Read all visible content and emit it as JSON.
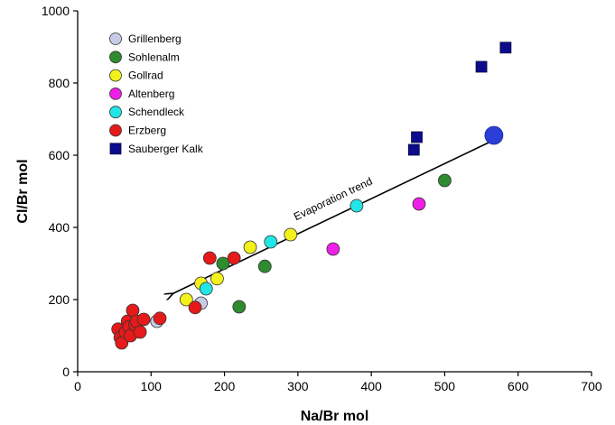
{
  "chart_data": {
    "type": "scatter",
    "xlabel": "Na/Br mol",
    "ylabel": "Cl/Br mol",
    "xlim": [
      0,
      700
    ],
    "ylim": [
      0,
      1000
    ],
    "x_ticks": [
      "0",
      "100",
      "200",
      "300",
      "400",
      "500",
      "600",
      "700"
    ],
    "y_ticks": [
      "0",
      "200",
      "400",
      "600",
      "800",
      "1000"
    ],
    "grid": false,
    "legend_position": "top-left",
    "series": [
      {
        "name": "Grillenberg",
        "color": "#c8cbe8",
        "marker": "circle",
        "points": [
          [
            108,
            140
          ],
          [
            168,
            190
          ]
        ]
      },
      {
        "name": "Sohlenalm",
        "color": "#2e8b2e",
        "marker": "circle",
        "points": [
          [
            198,
            300
          ],
          [
            220,
            180
          ],
          [
            255,
            292
          ],
          [
            500,
            530
          ]
        ]
      },
      {
        "name": "Gollrad",
        "color": "#f2f21a",
        "marker": "circle",
        "points": [
          [
            148,
            200
          ],
          [
            168,
            245
          ],
          [
            190,
            258
          ],
          [
            235,
            345
          ],
          [
            290,
            380
          ]
        ]
      },
      {
        "name": "Altenberg",
        "color": "#ee1fe6",
        "marker": "circle",
        "points": [
          [
            348,
            340
          ],
          [
            465,
            465
          ]
        ]
      },
      {
        "name": "Schendleck",
        "color": "#22e6e6",
        "marker": "circle",
        "points": [
          [
            175,
            230
          ],
          [
            263,
            360
          ],
          [
            380,
            460
          ]
        ]
      },
      {
        "name": "Erzberg",
        "color": "#e61a1a",
        "marker": "circle",
        "points": [
          [
            55,
            118
          ],
          [
            58,
            95
          ],
          [
            60,
            80
          ],
          [
            65,
            110
          ],
          [
            68,
            140
          ],
          [
            70,
            125
          ],
          [
            72,
            100
          ],
          [
            75,
            170
          ],
          [
            78,
            130
          ],
          [
            80,
            140
          ],
          [
            85,
            110
          ],
          [
            90,
            145
          ],
          [
            112,
            148
          ],
          [
            160,
            178
          ],
          [
            180,
            315
          ],
          [
            213,
            315
          ]
        ]
      },
      {
        "name": "Sauberger Kalk",
        "color": "#0c0c8c",
        "marker": "square",
        "points": [
          [
            458,
            615
          ],
          [
            462,
            650
          ],
          [
            550,
            845
          ],
          [
            583,
            898
          ]
        ]
      }
    ],
    "highlight_point": {
      "x": 567,
      "y": 655,
      "color": "#2b3fd6"
    },
    "annotation": {
      "text": "Evaporation trend",
      "arrow_from": [
        565,
        640
      ],
      "arrow_to": [
        128,
        215
      ],
      "label_at": [
        350,
        470
      ]
    }
  }
}
